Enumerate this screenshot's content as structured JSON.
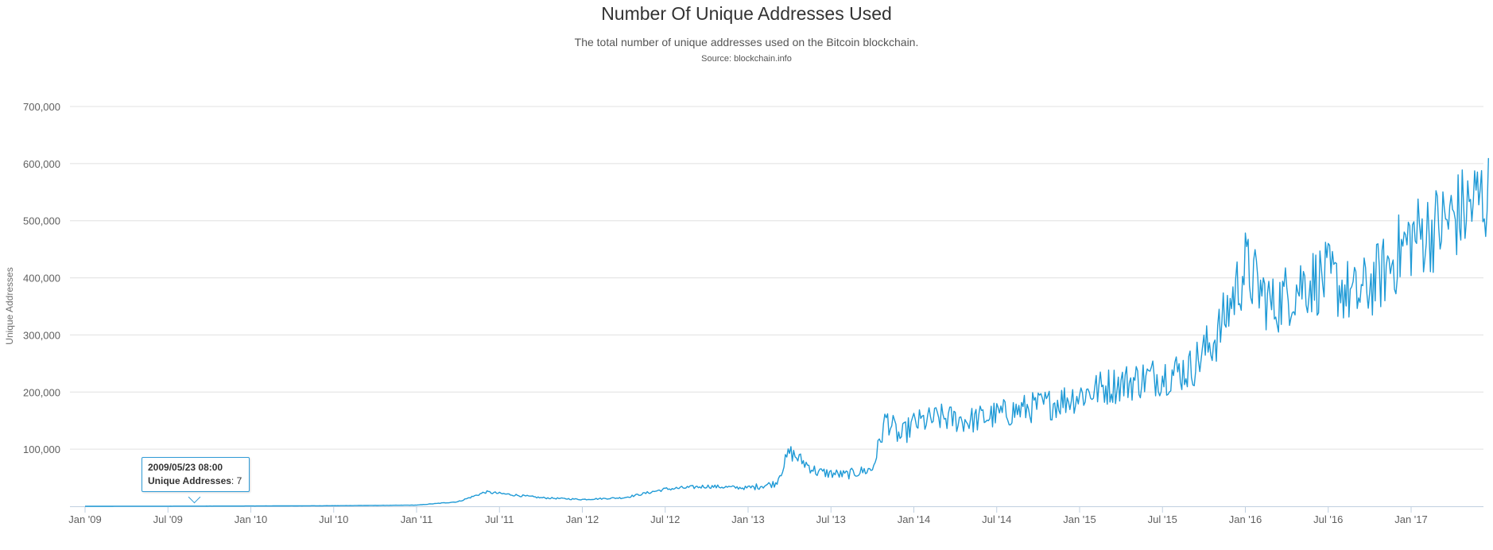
{
  "header": {
    "title": "Number Of Unique Addresses Used",
    "subtitle": "The total number of unique addresses used on the Bitcoin blockchain.",
    "source": "Source: blockchain.info"
  },
  "tooltip": {
    "date": "2009/05/23 08:00",
    "label": "Unique Addresses",
    "value": "7"
  },
  "colors": {
    "line": "#1f9ad6",
    "grid": "#e0e0e0",
    "axis": "#c0d0e0"
  },
  "chart_data": {
    "type": "line",
    "title": "Number Of Unique Addresses Used",
    "subtitle": "The total number of unique addresses used on the Bitcoin blockchain.",
    "ylabel": "Unique Addresses",
    "xlabel": "",
    "ylim": [
      0,
      700000
    ],
    "y_ticks": [
      "100,000",
      "200,000",
      "300,000",
      "400,000",
      "500,000",
      "600,000",
      "700,000"
    ],
    "x_ticks": [
      "Jan '09",
      "Jul '09",
      "Jan '10",
      "Jul '10",
      "Jan '11",
      "Jul '11",
      "Jan '12",
      "Jul '12",
      "Jan '13",
      "Jul '13",
      "Jan '14",
      "Jul '14",
      "Jan '15",
      "Jul '15",
      "Jan '16",
      "Jul '16",
      "Jan '17"
    ],
    "grid": true,
    "legend": "none",
    "series": [
      {
        "x": [
          "2009-01",
          "2009-07",
          "2010-01",
          "2010-07",
          "2011-01",
          "2011-04",
          "2011-06",
          "2011-08",
          "2011-10",
          "2012-01",
          "2012-04",
          "2012-07",
          "2012-10",
          "2013-01",
          "2013-03",
          "2013-04",
          "2013-06",
          "2013-08",
          "2013-10",
          "2013-11",
          "2013-12",
          "2014-01",
          "2014-03",
          "2014-05",
          "2014-07",
          "2014-09",
          "2014-11",
          "2015-01",
          "2015-03",
          "2015-05",
          "2015-07",
          "2015-09",
          "2015-11",
          "2015-12",
          "2016-01",
          "2016-02",
          "2016-03",
          "2016-05",
          "2016-07",
          "2016-09",
          "2016-11",
          "2017-01",
          "2017-03",
          "2017-05",
          "2017-06"
        ],
        "values": [
          5,
          200,
          500,
          1000,
          2000,
          8000,
          25000,
          20000,
          15000,
          12000,
          15000,
          30000,
          35000,
          32000,
          40000,
          95000,
          60000,
          55000,
          65000,
          155000,
          120000,
          145000,
          155000,
          150000,
          160000,
          170000,
          180000,
          195000,
          210000,
          220000,
          230000,
          240000,
          300000,
          360000,
          420000,
          380000,
          350000,
          390000,
          400000,
          365000,
          410000,
          470000,
          490000,
          520000,
          540000
        ]
      }
    ]
  }
}
